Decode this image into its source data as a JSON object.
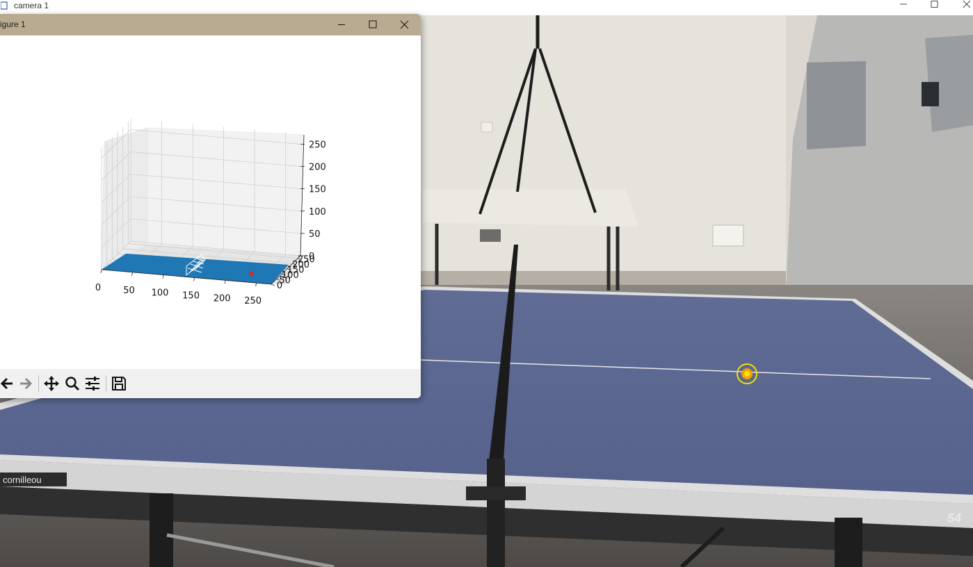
{
  "camera_window": {
    "title": "camera 1",
    "controls": [
      "minimize-icon",
      "maximize-icon",
      "close-icon"
    ]
  },
  "scene": {
    "table_brand": "cornilleou",
    "table_model": "54",
    "detected_ball_marker_color": "#f5e400",
    "table_color": "#5d6891"
  },
  "figure_window": {
    "title": "igure 1",
    "controls": [
      "minimize-icon",
      "maximize-icon",
      "close-icon"
    ],
    "toolbar": [
      "back-icon",
      "forward-icon",
      "pan-icon",
      "zoom-icon",
      "configure-subplots-icon",
      "save-icon"
    ]
  },
  "chart_data": {
    "type": "scatter",
    "projection": "3d",
    "title": "",
    "xlabel": "",
    "ylabel": "",
    "zlabel": "",
    "x_ticks": [
      "0",
      "50",
      "100",
      "150",
      "200",
      "250"
    ],
    "y_ticks": [
      "0",
      "50",
      "100",
      "150",
      "200",
      "250"
    ],
    "z_ticks": [
      "0",
      "50",
      "100",
      "150",
      "200",
      "250"
    ],
    "xlim": [
      0,
      274
    ],
    "ylim": [
      0,
      274
    ],
    "zlim": [
      0,
      274
    ],
    "grid": true,
    "table_surface": {
      "color": "#1f77b4",
      "x_range": [
        0,
        274
      ],
      "y_range": [
        0,
        152.5
      ],
      "z": 0
    },
    "net": {
      "x": 137,
      "color": "#ffffff"
    },
    "points": [
      {
        "x": 228,
        "y": 80,
        "z": 0,
        "color": "#d62728"
      }
    ]
  }
}
